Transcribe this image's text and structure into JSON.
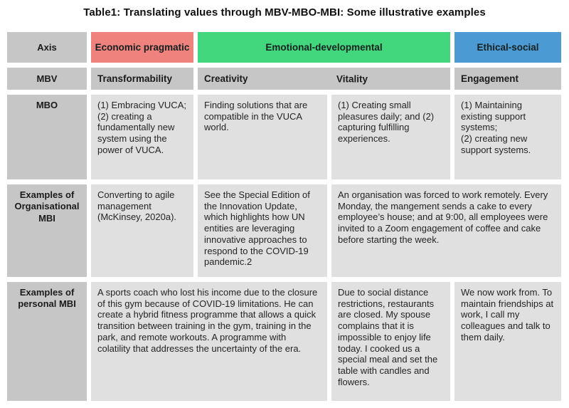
{
  "title": "Table1: Translating values through MBV-MBO-MBI: Some illustrative examples",
  "colors": {
    "economic_pragmatic": "#ef827d",
    "emotional_developmental": "#42d77c",
    "ethical_social": "#4c9ad4",
    "header_gray": "#c6c6c6",
    "body_gray": "#e0e0e0"
  },
  "header": {
    "axis": "Axis",
    "economic": "Economic pragmatic",
    "emotional": "Emotional-developmental",
    "ethical": "Ethical-social"
  },
  "mbv": {
    "label": "MBV",
    "transformability": "Transformability",
    "creativity": "Creativity",
    "vitality": "Vitality",
    "engagement": "Engagement"
  },
  "mbo": {
    "label": "MBO",
    "transformability": "(1) Embracing VUCA;\n(2) creating a fundamentally new system using the power of VUCA.",
    "creativity": "Finding solutions that are compatible in the VUCA world.",
    "vitality": "(1) Creating small pleasures daily; and (2) capturing fulfilling experiences.",
    "engagement": "(1) Maintaining existing support systems;\n(2) creating new support systems."
  },
  "org_mbi": {
    "label": "Examples of Organisational MBI",
    "transformability": "Converting to agile management (McKinsey, 2020a).",
    "creativity": "See the Special Edition of the Innovation Update, which highlights how UN entities are leveraging innovative approaches to respond to the COVID-19 pandemic.2",
    "vitality_engagement": "An organisation was forced to work remotely. Every Monday, the mangement sends a cake to every employee’s house; and at 9:00, all employees were invited to a Zoom engagement of coffee and cake before starting the week."
  },
  "personal_mbi": {
    "label": "Examples of personal MBI",
    "transformability_creativity": "A sports coach who lost his income due to the closure of this gym because of COVID-19 limitations. He can create a hybrid fitness programme that allows a quick transition between training in the gym, training in the park, and remote workouts. A programme with colatility that addresses the uncertainty of the era.",
    "vitality": "Due to social distance restrictions, restaurants are closed. My spouse complains that it is impossible to enjoy life today. I cooked us a special meal and set the table with candles and flowers.",
    "engagement": "We now work from. To maintain friendships at work, I call my colleagues and talk to them daily."
  }
}
